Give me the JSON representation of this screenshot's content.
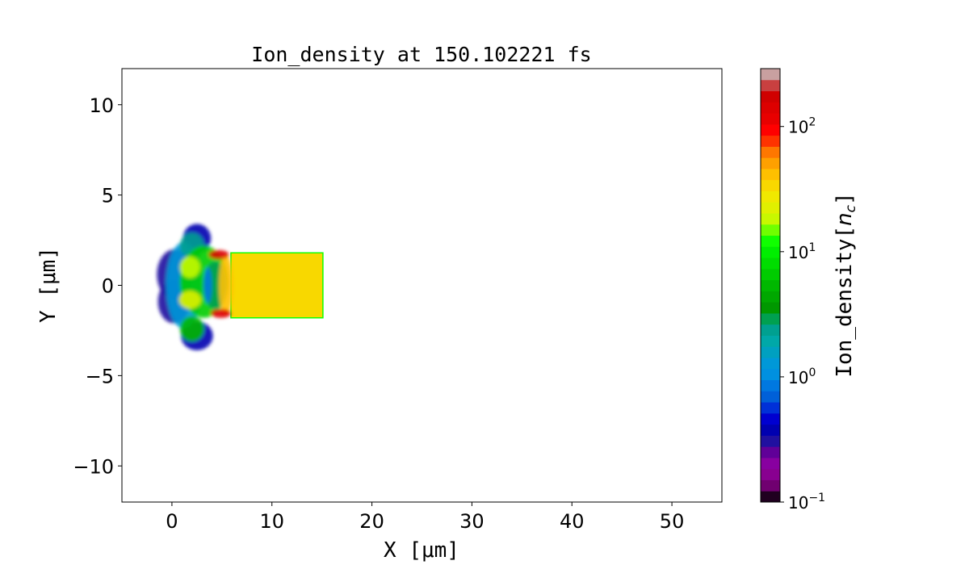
{
  "chart_data": {
    "type": "heatmap",
    "title": "Ion_density at 150.102221 fs",
    "xlabel": "X [μm]",
    "ylabel": "Y [μm]",
    "xlim": [
      -5,
      55
    ],
    "ylim": [
      -12,
      12
    ],
    "xticks": [
      0,
      10,
      20,
      30,
      40,
      50
    ],
    "xtick_labels": [
      "0",
      "10",
      "20",
      "30",
      "40",
      "50"
    ],
    "yticks": [
      10,
      5,
      0,
      -5,
      -10
    ],
    "ytick_labels": [
      "10",
      "5",
      "0",
      "−5",
      "−10"
    ],
    "colorbar": {
      "label": "Ion_density[n_c]",
      "label_main": "Ion_density[",
      "label_sym": "n",
      "label_sub": "c",
      "label_end": "]",
      "scale": "log",
      "range": [
        0.1,
        290
      ],
      "ticks": [
        0.1,
        1,
        10,
        100
      ],
      "tick_bases": [
        "10",
        "10",
        "10",
        "10"
      ],
      "tick_exponents": [
        "−1",
        "0",
        "1",
        "2"
      ],
      "colors": [
        "#200020",
        "#700070",
        "#880090",
        "#8800a0",
        "#600098",
        "#2010a0",
        "#0000b0",
        "#0000d0",
        "#0030d8",
        "#0060d8",
        "#0078e0",
        "#0090e0",
        "#0098d8",
        "#00a0c0",
        "#00a8a8",
        "#00a090",
        "#00a050",
        "#009800",
        "#00a800",
        "#00b800",
        "#00cc00",
        "#00dd00",
        "#00ee00",
        "#10ff00",
        "#70ff00",
        "#c8f800",
        "#e0f000",
        "#f0e800",
        "#f8d800",
        "#ffc000",
        "#ffa000",
        "#ff7700",
        "#ff3300",
        "#ff0000",
        "#e80000",
        "#dd0000",
        "#d00000",
        "#c84040",
        "#c8a0a0"
      ]
    },
    "grid": false,
    "target": {
      "x": [
        5.9,
        15.1
      ],
      "y": [
        -1.8,
        1.8
      ],
      "value": 35,
      "edge_value": 12
    },
    "features": [
      {
        "x": 0.3,
        "y": 0.6,
        "rx": 1.8,
        "ry": 1.4,
        "value": 0.3
      },
      {
        "x": 0.2,
        "y": -0.9,
        "rx": 1.6,
        "ry": 1.2,
        "value": 0.3
      },
      {
        "x": 2.5,
        "y": 2.6,
        "rx": 1.4,
        "ry": 0.8,
        "value": 0.4
      },
      {
        "x": 2.5,
        "y": -2.8,
        "rx": 1.6,
        "ry": 0.8,
        "value": 0.4
      },
      {
        "x": 1.2,
        "y": 0.0,
        "rx": 1.8,
        "ry": 2.4,
        "value": 1.2
      },
      {
        "x": 2.0,
        "y": 2.2,
        "rx": 1.2,
        "ry": 0.7,
        "value": 2.5
      },
      {
        "x": 2.0,
        "y": -2.4,
        "rx": 1.2,
        "ry": 0.7,
        "value": 5
      },
      {
        "x": 3.2,
        "y": 0.2,
        "rx": 2.4,
        "ry": 2.0,
        "value": 6
      },
      {
        "x": 1.8,
        "y": 1.0,
        "rx": 1.0,
        "ry": 0.6,
        "value": 20
      },
      {
        "x": 1.8,
        "y": -0.8,
        "rx": 1.1,
        "ry": 0.5,
        "value": 22
      },
      {
        "x": 4.3,
        "y": 0.0,
        "rx": 1.2,
        "ry": 1.3,
        "value": 3
      },
      {
        "x": 5.4,
        "y": 0.0,
        "rx": 0.7,
        "ry": 1.7,
        "value": 40
      },
      {
        "x": 4.7,
        "y": 1.7,
        "rx": 1.0,
        "ry": 0.25,
        "value": 150
      },
      {
        "x": 4.9,
        "y": -1.55,
        "rx": 1.0,
        "ry": 0.25,
        "value": 150
      },
      {
        "x": 3.6,
        "y": 0.0,
        "rx": 0.4,
        "ry": 1.0,
        "value": 0.8
      }
    ]
  }
}
